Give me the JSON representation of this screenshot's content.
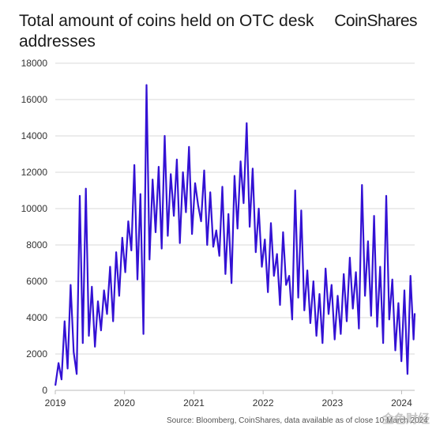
{
  "header": {
    "title": "Total amount of coins held on OTC desk addresses",
    "logo_text": "CoinShares"
  },
  "footer": {
    "source": "Source: Bloomberg, CoinShares, data available as of close 10 March 2024",
    "watermark": "金色财经"
  },
  "colors": {
    "line": "#3311d4",
    "grid": "#d9d9d9",
    "axis": "#bbbbbb"
  },
  "chart_data": {
    "type": "line",
    "title": "Total amount of coins held on OTC desk addresses",
    "xlabel": "",
    "ylabel": "",
    "xlim": [
      "2019-01-01",
      "2024-03-10"
    ],
    "ylim": [
      0,
      18000
    ],
    "yticks": [
      0,
      2000,
      4000,
      6000,
      8000,
      10000,
      12000,
      14000,
      16000,
      18000
    ],
    "ytick_labels": [
      "0",
      "2000",
      "4000",
      "6000",
      "8000",
      "10000",
      "12000",
      "14000",
      "16000",
      "18000"
    ],
    "xticks": [
      "2019-01-01",
      "2020-01-01",
      "2021-01-01",
      "2022-01-01",
      "2023-01-01",
      "2024-01-01"
    ],
    "xtick_labels": [
      "2019",
      "2020",
      "2021",
      "2022",
      "2023",
      "2024"
    ],
    "grid": "horizontal",
    "legend": "none",
    "series": [
      {
        "name": "",
        "x": [
          "2019-01-02",
          "2019-01-18",
          "2019-02-03",
          "2019-02-19",
          "2019-03-07",
          "2019-03-23",
          "2019-04-08",
          "2019-04-24",
          "2019-05-10",
          "2019-05-26",
          "2019-06-11",
          "2019-06-27",
          "2019-07-13",
          "2019-07-29",
          "2019-08-14",
          "2019-08-30",
          "2019-09-15",
          "2019-10-01",
          "2019-10-17",
          "2019-11-02",
          "2019-11-18",
          "2019-12-04",
          "2019-12-20",
          "2020-01-05",
          "2020-01-21",
          "2020-02-06",
          "2020-02-22",
          "2020-03-09",
          "2020-03-25",
          "2020-04-10",
          "2020-04-26",
          "2020-05-12",
          "2020-05-28",
          "2020-06-13",
          "2020-06-29",
          "2020-07-15",
          "2020-07-31",
          "2020-08-16",
          "2020-09-01",
          "2020-09-17",
          "2020-10-03",
          "2020-10-19",
          "2020-11-04",
          "2020-11-20",
          "2020-12-06",
          "2020-12-22",
          "2021-01-07",
          "2021-01-23",
          "2021-02-08",
          "2021-02-24",
          "2021-03-12",
          "2021-03-28",
          "2021-04-13",
          "2021-04-29",
          "2021-05-15",
          "2021-05-31",
          "2021-06-16",
          "2021-07-02",
          "2021-07-18",
          "2021-08-03",
          "2021-08-19",
          "2021-09-04",
          "2021-09-20",
          "2021-10-06",
          "2021-10-22",
          "2021-11-07",
          "2021-11-23",
          "2021-12-09",
          "2021-12-25",
          "2022-01-10",
          "2022-01-26",
          "2022-02-11",
          "2022-02-27",
          "2022-03-15",
          "2022-03-31",
          "2022-04-16",
          "2022-05-02",
          "2022-05-18",
          "2022-06-03",
          "2022-06-19",
          "2022-07-05",
          "2022-07-21",
          "2022-08-06",
          "2022-08-22",
          "2022-09-07",
          "2022-09-23",
          "2022-10-09",
          "2022-10-25",
          "2022-11-10",
          "2022-11-26",
          "2022-12-12",
          "2022-12-28",
          "2023-01-13",
          "2023-01-29",
          "2023-02-14",
          "2023-03-02",
          "2023-03-18",
          "2023-04-03",
          "2023-04-19",
          "2023-05-05",
          "2023-05-21",
          "2023-06-06",
          "2023-06-22",
          "2023-07-08",
          "2023-07-24",
          "2023-08-09",
          "2023-08-25",
          "2023-09-10",
          "2023-09-26",
          "2023-10-12",
          "2023-10-28",
          "2023-11-13",
          "2023-11-29",
          "2023-12-15",
          "2023-12-31",
          "2024-01-16",
          "2024-02-01",
          "2024-02-17",
          "2024-03-04",
          "2024-03-10"
        ],
        "values": [
          300,
          1500,
          600,
          3800,
          1200,
          5800,
          2100,
          900,
          10700,
          2600,
          11100,
          3000,
          5700,
          2400,
          4900,
          3300,
          5500,
          4200,
          6800,
          3800,
          7600,
          5200,
          8400,
          6500,
          9300,
          7700,
          12400,
          6100,
          10800,
          3100,
          16800,
          7200,
          11600,
          8700,
          12300,
          7800,
          14000,
          8500,
          11900,
          9600,
          12700,
          8100,
          12000,
          9800,
          13400,
          8600,
          11400,
          10200,
          9300,
          12100,
          8000,
          10900,
          7900,
          8800,
          7400,
          11200,
          6400,
          9700,
          5900,
          11800,
          8900,
          12600,
          10300,
          14700,
          9000,
          12200,
          7600,
          10000,
          6800,
          8300,
          5400,
          9200,
          6300,
          7500,
          4700,
          8700,
          5800,
          6300,
          3900,
          11000,
          5100,
          9900,
          4400,
          6600,
          3700,
          6000,
          3000,
          5300,
          2600,
          6700,
          4200,
          5800,
          2800,
          5200,
          3100,
          6400,
          3800,
          7300,
          4500,
          6500,
          3400,
          11300,
          5200,
          8200,
          4100,
          9600,
          3500,
          6800,
          2600,
          10700,
          3900,
          6100,
          2200,
          4800,
          1600,
          5500,
          900,
          6300,
          2800,
          4200
        ]
      }
    ]
  }
}
